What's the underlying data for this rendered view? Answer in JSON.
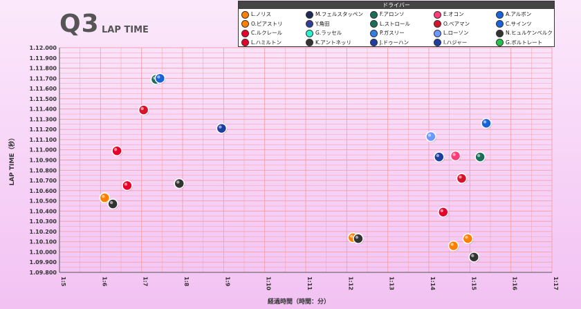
{
  "header": {
    "title": "Q3",
    "subtitle": "LAP TIME"
  },
  "legend": {
    "title": "ドライバー",
    "items": [
      {
        "name": "L.ノリス",
        "color": "#ff8000"
      },
      {
        "name": "M.フェルスタッペン",
        "color": "#1e2a5a"
      },
      {
        "name": "F.アロンソ",
        "color": "#1b6e5a"
      },
      {
        "name": "E.オコン",
        "color": "#ff3b7a"
      },
      {
        "name": "A.アルボン",
        "color": "#1a62d8"
      },
      {
        "name": "O.ピアストリ",
        "color": "#ff8000"
      },
      {
        "name": "Y.角田",
        "color": "#2d3f9c"
      },
      {
        "name": "L.ストロール",
        "color": "#1b6e5a"
      },
      {
        "name": "O.ベアマン",
        "color": "#d6132a"
      },
      {
        "name": "C.サインツ",
        "color": "#1a62d8"
      },
      {
        "name": "C.ルクレール",
        "color": "#e8002d"
      },
      {
        "name": "G.ラッセル",
        "color": "#27f4d2"
      },
      {
        "name": "P.ガスリー",
        "color": "#2f7fe0"
      },
      {
        "name": "L.ローソン",
        "color": "#6c98ff"
      },
      {
        "name": "N.ヒュルケンベルク",
        "color": "#333333"
      },
      {
        "name": "L.ハミルトン",
        "color": "#e8002d"
      },
      {
        "name": "K.アントネッリ",
        "color": "#333333"
      },
      {
        "name": "J.ドゥーハン",
        "color": "#1c3fa0"
      },
      {
        "name": "I.ハジャー",
        "color": "#1c3fa0"
      },
      {
        "name": "G.ボルトレート",
        "color": "#27c24a"
      }
    ]
  },
  "chart_data": {
    "type": "scatter",
    "xlabel": "経過時間（時間：分）",
    "ylabel": "LAP TIME（秒）",
    "xlim": [
      5,
      17
    ],
    "ylim": [
      69.8,
      72.0
    ],
    "x_ticks": [
      "1:5",
      "1:6",
      "1:7",
      "1:8",
      "1:9",
      "1:10",
      "1:11",
      "1:12",
      "1:13",
      "1:14",
      "1:15",
      "1:16",
      "1:17"
    ],
    "y_ticks": [
      "1.09.800",
      "1.09.900",
      "1.10.000",
      "1.10.100",
      "1.10.200",
      "1.10.300",
      "1.10.400",
      "1.10.500",
      "1.10.600",
      "1.10.700",
      "1.10.800",
      "1.10.900",
      "1.11.000",
      "1.11.100",
      "1.11.200",
      "1.11.300",
      "1.11.400",
      "1.11.500",
      "1.11.600",
      "1.11.700",
      "1.11.800",
      "1.11.900",
      "1.12.000"
    ],
    "grid": true,
    "points": [
      {
        "x": 7.35,
        "y": 71.69,
        "color": "#1b6e5a"
      },
      {
        "x": 7.45,
        "y": 71.7,
        "color": "#1a62d8"
      },
      {
        "x": 7.05,
        "y": 71.39,
        "color": "#d6132a"
      },
      {
        "x": 8.95,
        "y": 71.21,
        "color": "#1c3fa0"
      },
      {
        "x": 6.4,
        "y": 70.99,
        "color": "#e8002d"
      },
      {
        "x": 6.65,
        "y": 70.65,
        "color": "#e8002d"
      },
      {
        "x": 7.92,
        "y": 70.67,
        "color": "#333333"
      },
      {
        "x": 6.1,
        "y": 70.53,
        "color": "#ff8000"
      },
      {
        "x": 6.3,
        "y": 70.47,
        "color": "#333333"
      },
      {
        "x": 12.15,
        "y": 70.14,
        "color": "#ff8000"
      },
      {
        "x": 12.28,
        "y": 70.13,
        "color": "#333333"
      },
      {
        "x": 14.05,
        "y": 71.13,
        "color": "#6c98ff"
      },
      {
        "x": 15.4,
        "y": 71.26,
        "color": "#1a62d8"
      },
      {
        "x": 14.25,
        "y": 70.93,
        "color": "#1c3fa0"
      },
      {
        "x": 14.65,
        "y": 70.94,
        "color": "#ff3b7a"
      },
      {
        "x": 15.25,
        "y": 70.93,
        "color": "#1b6e5a"
      },
      {
        "x": 14.8,
        "y": 70.72,
        "color": "#d6132a"
      },
      {
        "x": 14.35,
        "y": 70.39,
        "color": "#e8002d"
      },
      {
        "x": 14.95,
        "y": 70.13,
        "color": "#ff8000"
      },
      {
        "x": 14.6,
        "y": 70.06,
        "color": "#ff8000"
      },
      {
        "x": 15.1,
        "y": 69.95,
        "color": "#333333"
      }
    ]
  }
}
